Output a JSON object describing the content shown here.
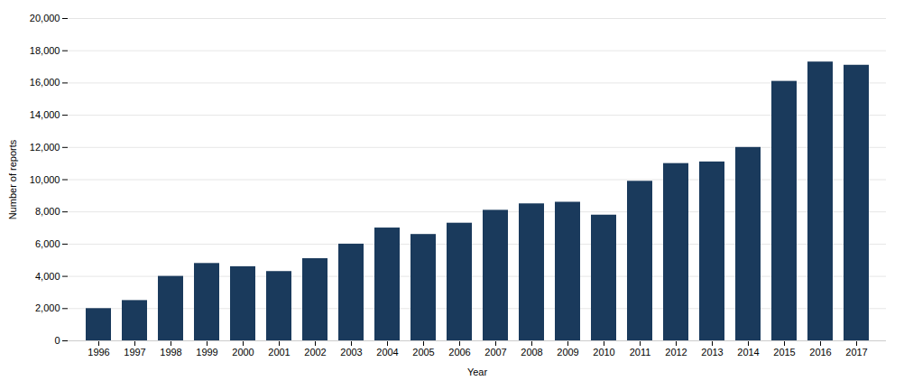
{
  "chart_data": {
    "type": "bar",
    "categories": [
      "1996",
      "1997",
      "1998",
      "1999",
      "2000",
      "2001",
      "2002",
      "2003",
      "2004",
      "2005",
      "2006",
      "2007",
      "2008",
      "2009",
      "2010",
      "2011",
      "2012",
      "2013",
      "2014",
      "2015",
      "2016",
      "2017"
    ],
    "values": [
      2000,
      2500,
      4000,
      4800,
      4600,
      4300,
      5100,
      6000,
      7000,
      6600,
      7300,
      8100,
      8500,
      8600,
      7800,
      9900,
      11000,
      11100,
      12000,
      16100,
      17300,
      17100
    ],
    "color": "#1a3a5c",
    "xlabel": "Year",
    "ylabel": "Number of reports",
    "ylim": [
      0,
      20000
    ],
    "yticks": [
      0,
      {
        "value": 2000,
        "label": "2,000"
      },
      {
        "value": 4000,
        "label": "4,000"
      },
      {
        "value": 6000,
        "label": "6,000"
      },
      {
        "value": 8000,
        "label": "8,000"
      },
      {
        "value": 10000,
        "label": "10,000"
      },
      {
        "value": 12000,
        "label": "12,000"
      },
      {
        "value": 14000,
        "label": "14,000"
      },
      {
        "value": 16000,
        "label": "16,000"
      },
      {
        "value": 18000,
        "label": "18,000"
      },
      {
        "value": 20000,
        "label": "20,000"
      }
    ],
    "grid": true
  }
}
